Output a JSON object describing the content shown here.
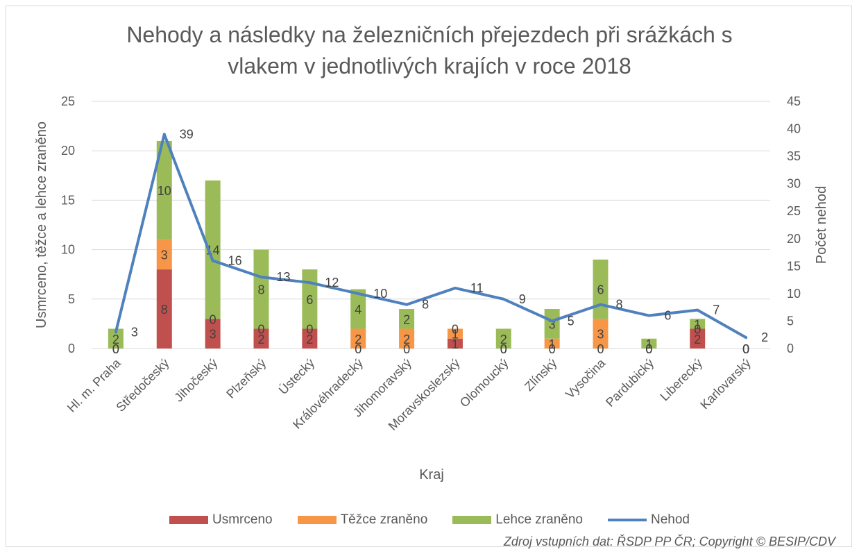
{
  "title_line1": "Nehody a následky na železničních přejezdech při srážkách s",
  "title_line2": "vlakem v jednotlivých krajích v roce 2018",
  "source": "Zdroj vstupních dat: ŘSDP PP ČR; Copyright © BESIP/CDV",
  "colors": {
    "usmrceno": "#c0504d",
    "tezce": "#f79646",
    "lehce": "#9bbb59",
    "nehod": "#4f81bd"
  },
  "chart_data": {
    "type": "bar",
    "stacked": true,
    "title": "Nehody a následky na železničních přejezdech při srážkách s vlakem v jednotlivých krajích v roce 2018",
    "xlabel": "Kraj",
    "ylabel": "Usmrceno, těžce a lehce zraněno",
    "y2label": "Počet nehod",
    "ylim": [
      0,
      25
    ],
    "y2lim": [
      0,
      45
    ],
    "yticks": [
      0,
      5,
      10,
      15,
      20,
      25
    ],
    "y2ticks": [
      0,
      5,
      10,
      15,
      20,
      25,
      30,
      35,
      40,
      45
    ],
    "legend_position": "bottom",
    "categories": [
      "Hl. m. Praha",
      "Středočeský",
      "Jihočeský",
      "Plzeňský",
      "Ústecký",
      "Královéhradecký",
      "Jihomoravský",
      "Moravskoslezský",
      "Olomoucký",
      "Zlínský",
      "Vysočina",
      "Pardubický",
      "Liberecký",
      "Karlovarský"
    ],
    "series": [
      {
        "name": "Usmrceno",
        "type": "bar",
        "axis": "left",
        "values": [
          0,
          8,
          3,
          2,
          2,
          0,
          0,
          1,
          0,
          0,
          0,
          0,
          2,
          0
        ]
      },
      {
        "name": "Těžce zraněno",
        "type": "bar",
        "axis": "left",
        "values": [
          0,
          3,
          0,
          0,
          0,
          2,
          2,
          1,
          0,
          1,
          3,
          0,
          0,
          0
        ]
      },
      {
        "name": "Lehce zraněno",
        "type": "bar",
        "axis": "left",
        "values": [
          2,
          10,
          14,
          8,
          6,
          4,
          2,
          0,
          2,
          3,
          6,
          1,
          1,
          0
        ]
      },
      {
        "name": "Nehod",
        "type": "line",
        "axis": "right",
        "values": [
          3,
          39,
          16,
          13,
          12,
          10,
          8,
          11,
          9,
          5,
          8,
          6,
          7,
          2
        ]
      }
    ]
  }
}
